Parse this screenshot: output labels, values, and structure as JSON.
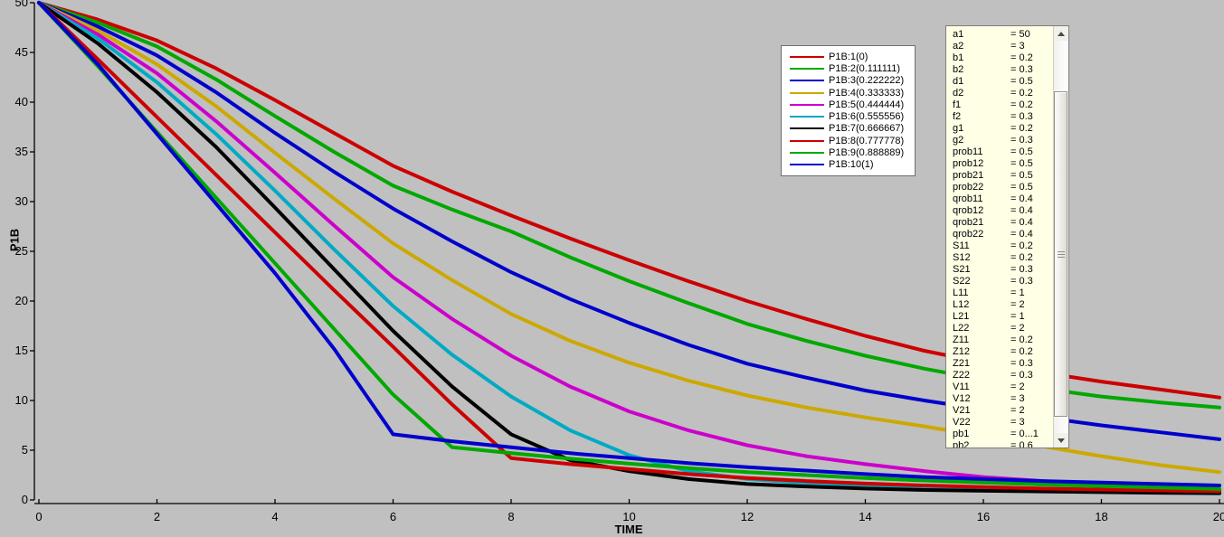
{
  "window": {
    "background": "#C0C0C0",
    "plot_background": "#C0C0C0"
  },
  "chart_data": {
    "type": "line",
    "title": "",
    "xlabel": "TIME",
    "ylabel": "P1B",
    "xlim": [
      0,
      20
    ],
    "ylim": [
      0,
      50
    ],
    "xticks": [
      0,
      2,
      4,
      6,
      8,
      10,
      12,
      14,
      16,
      18,
      20
    ],
    "yticks": [
      0,
      5,
      10,
      15,
      20,
      25,
      30,
      35,
      40,
      45,
      50
    ],
    "grid": false,
    "legend_position": "floating-upper-middle-right",
    "x": [
      0,
      1,
      2,
      3,
      4,
      5,
      6,
      7,
      8,
      9,
      10,
      11,
      12,
      13,
      14,
      15,
      16,
      17,
      18,
      19,
      20
    ],
    "series": [
      {
        "name": "P1B:1(0)",
        "color": "#CC0000",
        "values": [
          50,
          48.3,
          46.2,
          43.4,
          40.2,
          36.9,
          33.6,
          31.0,
          28.6,
          26.3,
          24.1,
          22.0,
          20.0,
          18.2,
          16.5,
          15.0,
          13.8,
          12.8,
          11.9,
          11.1,
          10.3
        ]
      },
      {
        "name": "P1B:2(0.111111)",
        "color": "#00A800",
        "values": [
          50,
          48.0,
          45.6,
          42.3,
          38.6,
          35.0,
          31.6,
          29.2,
          27.0,
          24.4,
          22.0,
          19.8,
          17.7,
          16.0,
          14.5,
          13.2,
          12.1,
          11.2,
          10.4,
          9.8,
          9.3
        ]
      },
      {
        "name": "P1B:3(0.222222)",
        "color": "#0000CC",
        "values": [
          50,
          47.6,
          44.7,
          41.0,
          36.9,
          33.0,
          29.3,
          26.0,
          22.9,
          20.2,
          17.8,
          15.6,
          13.7,
          12.3,
          11.0,
          10.0,
          9.1,
          8.3,
          7.5,
          6.8,
          6.1
        ]
      },
      {
        "name": "P1B:4(0.333333)",
        "color": "#CCA800",
        "values": [
          50,
          47.2,
          43.8,
          39.6,
          34.9,
          30.3,
          25.8,
          22.1,
          18.7,
          16.0,
          13.8,
          12.0,
          10.5,
          9.3,
          8.3,
          7.4,
          6.4,
          5.4,
          4.4,
          3.5,
          2.8
        ]
      },
      {
        "name": "P1B:5(0.444444)",
        "color": "#CC00CC",
        "values": [
          50,
          46.8,
          42.9,
          38.1,
          32.9,
          27.6,
          22.4,
          18.2,
          14.5,
          11.4,
          8.9,
          7.0,
          5.5,
          4.4,
          3.6,
          2.9,
          2.3,
          1.9,
          1.5,
          1.2,
          1.0
        ]
      },
      {
        "name": "P1B:6(0.555556)",
        "color": "#00AAC4",
        "values": [
          50,
          46.4,
          42.0,
          36.8,
          31.1,
          25.2,
          19.5,
          14.6,
          10.4,
          7.0,
          4.5,
          2.9,
          2.1,
          1.7,
          1.4,
          1.2,
          1.05,
          0.92,
          0.82,
          0.73,
          0.65
        ]
      },
      {
        "name": "P1B:7(0.666667)",
        "color": "#000000",
        "values": [
          50,
          45.9,
          41.0,
          35.5,
          29.4,
          23.2,
          17.0,
          11.4,
          6.6,
          4.0,
          2.9,
          2.1,
          1.6,
          1.35,
          1.15,
          1.0,
          0.92,
          0.85,
          0.78,
          0.72,
          0.68
        ]
      },
      {
        "name": "P1B:8(0.777778)",
        "color": "#CC0000",
        "values": [
          50,
          44.3,
          38.5,
          32.7,
          26.9,
          21.1,
          15.4,
          9.6,
          4.2,
          3.6,
          3.1,
          2.6,
          2.2,
          1.9,
          1.65,
          1.45,
          1.3,
          1.15,
          1.05,
          0.95,
          0.85
        ]
      },
      {
        "name": "P1B:9(0.888889)",
        "color": "#00A800",
        "values": [
          50,
          43.6,
          37.0,
          30.4,
          23.8,
          17.2,
          10.6,
          5.3,
          4.7,
          4.15,
          3.65,
          3.2,
          2.8,
          2.5,
          2.2,
          1.95,
          1.75,
          1.55,
          1.4,
          1.25,
          1.1
        ]
      },
      {
        "name": "P1B:10(1)",
        "color": "#0000CC",
        "values": [
          50,
          43.8,
          36.8,
          29.8,
          22.8,
          15.2,
          6.6,
          5.9,
          5.3,
          4.7,
          4.2,
          3.7,
          3.3,
          2.95,
          2.6,
          2.3,
          2.1,
          1.9,
          1.75,
          1.6,
          1.45
        ]
      }
    ]
  },
  "params": {
    "panel_background": "#FFFFE5",
    "items": [
      {
        "name": "a1",
        "value": "50"
      },
      {
        "name": "a2",
        "value": "3"
      },
      {
        "name": "b1",
        "value": "0.2"
      },
      {
        "name": "b2",
        "value": "0.3"
      },
      {
        "name": "d1",
        "value": "0.5"
      },
      {
        "name": "d2",
        "value": "0.2"
      },
      {
        "name": "f1",
        "value": "0.2"
      },
      {
        "name": "f2",
        "value": "0.3"
      },
      {
        "name": "g1",
        "value": "0.2"
      },
      {
        "name": "g2",
        "value": "0.3"
      },
      {
        "name": "prob11",
        "value": "0.5"
      },
      {
        "name": "prob12",
        "value": "0.5"
      },
      {
        "name": "prob21",
        "value": "0.5"
      },
      {
        "name": "prob22",
        "value": "0.5"
      },
      {
        "name": "qrob11",
        "value": "0.4"
      },
      {
        "name": "qrob12",
        "value": "0.4"
      },
      {
        "name": "qrob21",
        "value": "0.4"
      },
      {
        "name": "qrob22",
        "value": "0.4"
      },
      {
        "name": "S11",
        "value": "0.2"
      },
      {
        "name": "S12",
        "value": "0.2"
      },
      {
        "name": "S21",
        "value": "0.3"
      },
      {
        "name": "S22",
        "value": "0.3"
      },
      {
        "name": "L11",
        "value": "1"
      },
      {
        "name": "L12",
        "value": "2"
      },
      {
        "name": "L21",
        "value": "1"
      },
      {
        "name": "L22",
        "value": "2"
      },
      {
        "name": "Z11",
        "value": "0.2"
      },
      {
        "name": "Z12",
        "value": "0.2"
      },
      {
        "name": "Z21",
        "value": "0.3"
      },
      {
        "name": "Z22",
        "value": "0.3"
      },
      {
        "name": "V11",
        "value": "2"
      },
      {
        "name": "V12",
        "value": "3"
      },
      {
        "name": "V21",
        "value": "2"
      },
      {
        "name": "V22",
        "value": "3"
      },
      {
        "name": "pb1",
        "value": "0...1"
      },
      {
        "name": "pb2",
        "value": "0.6"
      }
    ]
  }
}
